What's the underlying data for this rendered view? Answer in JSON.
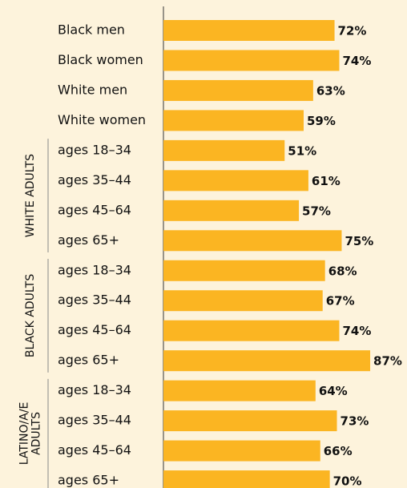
{
  "chart_data": {
    "type": "bar",
    "color": "#fbb522",
    "xlim": [
      0,
      100
    ],
    "groups": [
      {
        "label": [],
        "categories": [
          "Black men",
          "Black women",
          "White men",
          "White women"
        ],
        "values": [
          72,
          74,
          63,
          59
        ],
        "value_labels": [
          "72%",
          "74%",
          "63%",
          "59%"
        ]
      },
      {
        "label": [
          "WHITE ADULTS"
        ],
        "categories": [
          "ages 18–34",
          "ages 35–44",
          "ages 45–64",
          "ages 65+"
        ],
        "values": [
          51,
          61,
          57,
          75
        ],
        "value_labels": [
          "51%",
          "61%",
          "57%",
          "75%"
        ]
      },
      {
        "label": [
          "BLACK ADULTS"
        ],
        "categories": [
          "ages 18–34",
          "ages 35–44",
          "ages 45–64",
          "ages 65+"
        ],
        "values": [
          68,
          67,
          74,
          87
        ],
        "value_labels": [
          "68%",
          "67%",
          "74%",
          "87%"
        ]
      },
      {
        "label": [
          "LATINO/A/E",
          "ADULTS"
        ],
        "categories": [
          "ages 18–34",
          "ages 35–44",
          "ages 45–64",
          "ages 65+"
        ],
        "values": [
          64,
          73,
          66,
          70
        ],
        "value_labels": [
          "64%",
          "73%",
          "66%",
          "70%"
        ]
      }
    ]
  }
}
